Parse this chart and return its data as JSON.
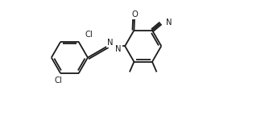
{
  "bg_color": "#ffffff",
  "line_color": "#1a1a1a",
  "line_width": 1.3,
  "font_size": 7.2,
  "figsize": [
    3.24,
    1.54
  ],
  "dpi": 100,
  "xlim": [
    -0.3,
    9.5
  ],
  "ylim": [
    -1.8,
    3.8
  ]
}
